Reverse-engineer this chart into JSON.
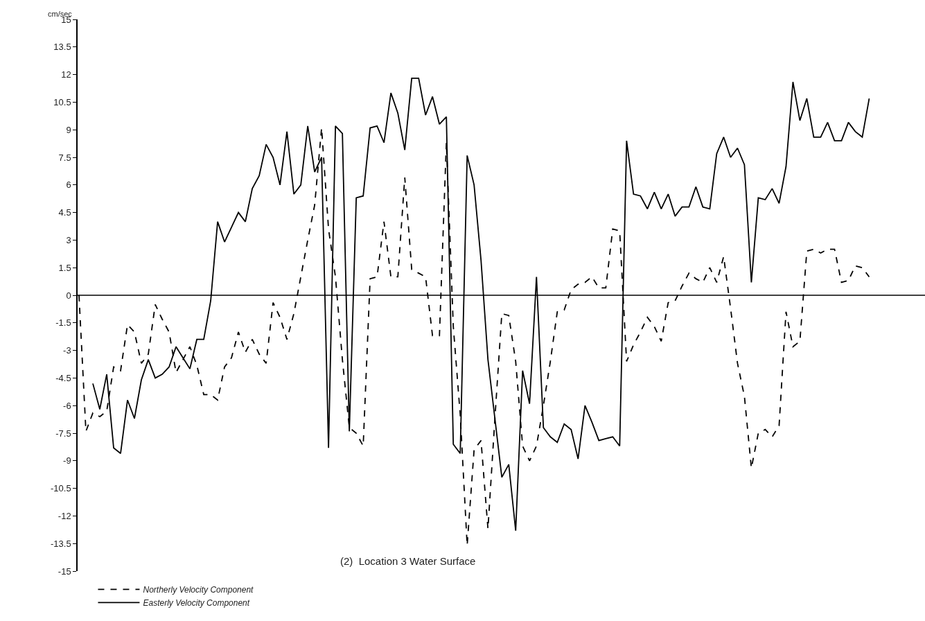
{
  "chart_data": {
    "type": "line",
    "ylabel": "cm/sec",
    "annotations": [
      "(2)  Location 3 Water Surface"
    ],
    "categories": [
      null,
      null,
      null,
      null,
      null,
      null,
      null,
      null,
      null,
      null,
      null,
      null,
      null,
      null,
      null,
      null,
      null,
      null,
      null,
      null,
      null,
      null,
      null,
      null,
      null,
      null,
      null,
      null,
      null,
      null,
      null,
      null,
      null,
      null,
      null,
      null,
      null,
      null,
      null,
      null,
      null,
      null,
      null,
      null,
      null,
      null,
      null,
      null,
      null,
      null,
      null,
      null,
      null,
      null,
      null,
      null,
      null,
      null,
      null,
      null,
      null,
      null,
      null,
      null,
      null,
      null,
      null,
      null,
      null,
      null,
      null,
      null,
      null,
      null,
      null,
      null,
      null,
      null,
      null,
      null,
      null,
      null,
      null,
      null,
      null,
      null,
      null,
      null,
      null,
      null,
      null,
      null,
      null,
      null,
      null,
      null,
      null,
      null,
      null,
      null,
      null,
      null,
      null,
      null,
      null,
      null,
      null,
      null,
      null,
      null,
      null,
      null,
      null,
      null,
      null
    ],
    "series": [
      {
        "name": "Northerly Velocity Component",
        "color": "#000000",
        "line_style": "dashed",
        "values": [
          0,
          -7.4,
          -6.4,
          -6.6,
          -6.3,
          -3.9,
          -4.1,
          -1.6,
          -2.0,
          -3.7,
          -3.2,
          -0.5,
          -1.3,
          -2.0,
          -4.2,
          -3.5,
          -2.8,
          -3.8,
          -5.4,
          -5.4,
          -5.7,
          -3.9,
          -3.4,
          -2.0,
          -3.1,
          -2.4,
          -3.2,
          -3.7,
          -0.4,
          -1.2,
          -2.4,
          -1.0,
          1.0,
          3.0,
          4.9,
          9.1,
          3.6,
          1.0,
          -3.5,
          -7.2,
          -7.5,
          -8.2,
          0.9,
          1.0,
          4.0,
          1.0,
          1.0,
          6.4,
          1.4,
          1.2,
          1.0,
          -2.2,
          -2.2,
          8.3,
          -1.7,
          -6.5,
          -13.6,
          -8.4,
          -7.9,
          -12.7,
          -6.7,
          -1.0,
          -1.1,
          -3.6,
          -8.2,
          -9.0,
          -8.2,
          -6.0,
          -3.6,
          -0.9,
          -0.8,
          0.3,
          0.6,
          0.7,
          1.0,
          0.4,
          0.4,
          3.6,
          3.5,
          -3.6,
          -2.7,
          -2.0,
          -1.2,
          -1.7,
          -2.5,
          -0.4,
          -0.3,
          0.5,
          1.2,
          0.9,
          0.7,
          1.5,
          0.7,
          2.1,
          -0.7,
          -3.7,
          -5.5,
          -9.4,
          -7.5,
          -7.3,
          -7.7,
          -7.1,
          -0.9,
          -2.8,
          -2.5,
          2.4,
          2.5,
          2.3,
          2.5,
          2.5,
          0.7,
          0.8,
          1.6,
          1.5,
          1.0
        ]
      },
      {
        "name": "Easterly Velocity Component",
        "color": "#000000",
        "line_style": "solid",
        "values": [
          null,
          null,
          -4.8,
          -6.2,
          -4.3,
          -8.3,
          -8.6,
          -5.7,
          -6.7,
          -4.6,
          -3.5,
          -4.5,
          -4.3,
          -3.9,
          -2.8,
          -3.4,
          -4.0,
          -2.4,
          -2.4,
          -0.3,
          4.0,
          2.9,
          3.7,
          4.5,
          4.0,
          5.8,
          6.5,
          8.2,
          7.5,
          6.0,
          8.9,
          5.5,
          6.0,
          9.2,
          6.7,
          7.5,
          -8.3,
          9.2,
          8.8,
          -7.4,
          5.3,
          5.4,
          9.1,
          9.2,
          8.3,
          11.0,
          9.9,
          7.9,
          11.8,
          11.8,
          9.8,
          10.8,
          9.3,
          9.7,
          -8.1,
          -8.6,
          7.6,
          6.0,
          1.9,
          -3.5,
          -6.7,
          -9.9,
          -9.2,
          -12.8,
          -4.1,
          -5.9,
          1.0,
          -7.2,
          -7.7,
          -8.0,
          -7.0,
          -7.3,
          -8.9,
          -6.0,
          -6.9,
          -7.9,
          -7.8,
          -7.7,
          -8.2,
          8.4,
          5.5,
          5.4,
          4.7,
          5.6,
          4.7,
          5.5,
          4.3,
          4.8,
          4.8,
          5.9,
          4.8,
          4.7,
          7.7,
          8.6,
          7.5,
          8.0,
          7.1,
          0.7,
          5.3,
          5.2,
          5.8,
          5.0,
          7.0,
          11.6,
          9.5,
          10.7,
          8.6,
          8.6,
          9.4,
          8.4,
          8.4,
          9.4,
          8.9,
          8.6,
          10.7
        ]
      }
    ],
    "ylim": [
      -15,
      15
    ],
    "yticks": [
      15,
      13.5,
      12,
      10.5,
      9,
      7.5,
      6,
      4.5,
      3,
      1.5,
      0,
      -1.5,
      -3,
      -4.5,
      -6,
      -7.5,
      -9,
      -10.5,
      -12,
      -13.5,
      -15
    ],
    "ref_lines": [
      {
        "axis": "y",
        "value": 0,
        "color": "#000000"
      }
    ],
    "tick_labels": "y",
    "grid": false,
    "legend": "bottom left",
    "marker": "none"
  }
}
